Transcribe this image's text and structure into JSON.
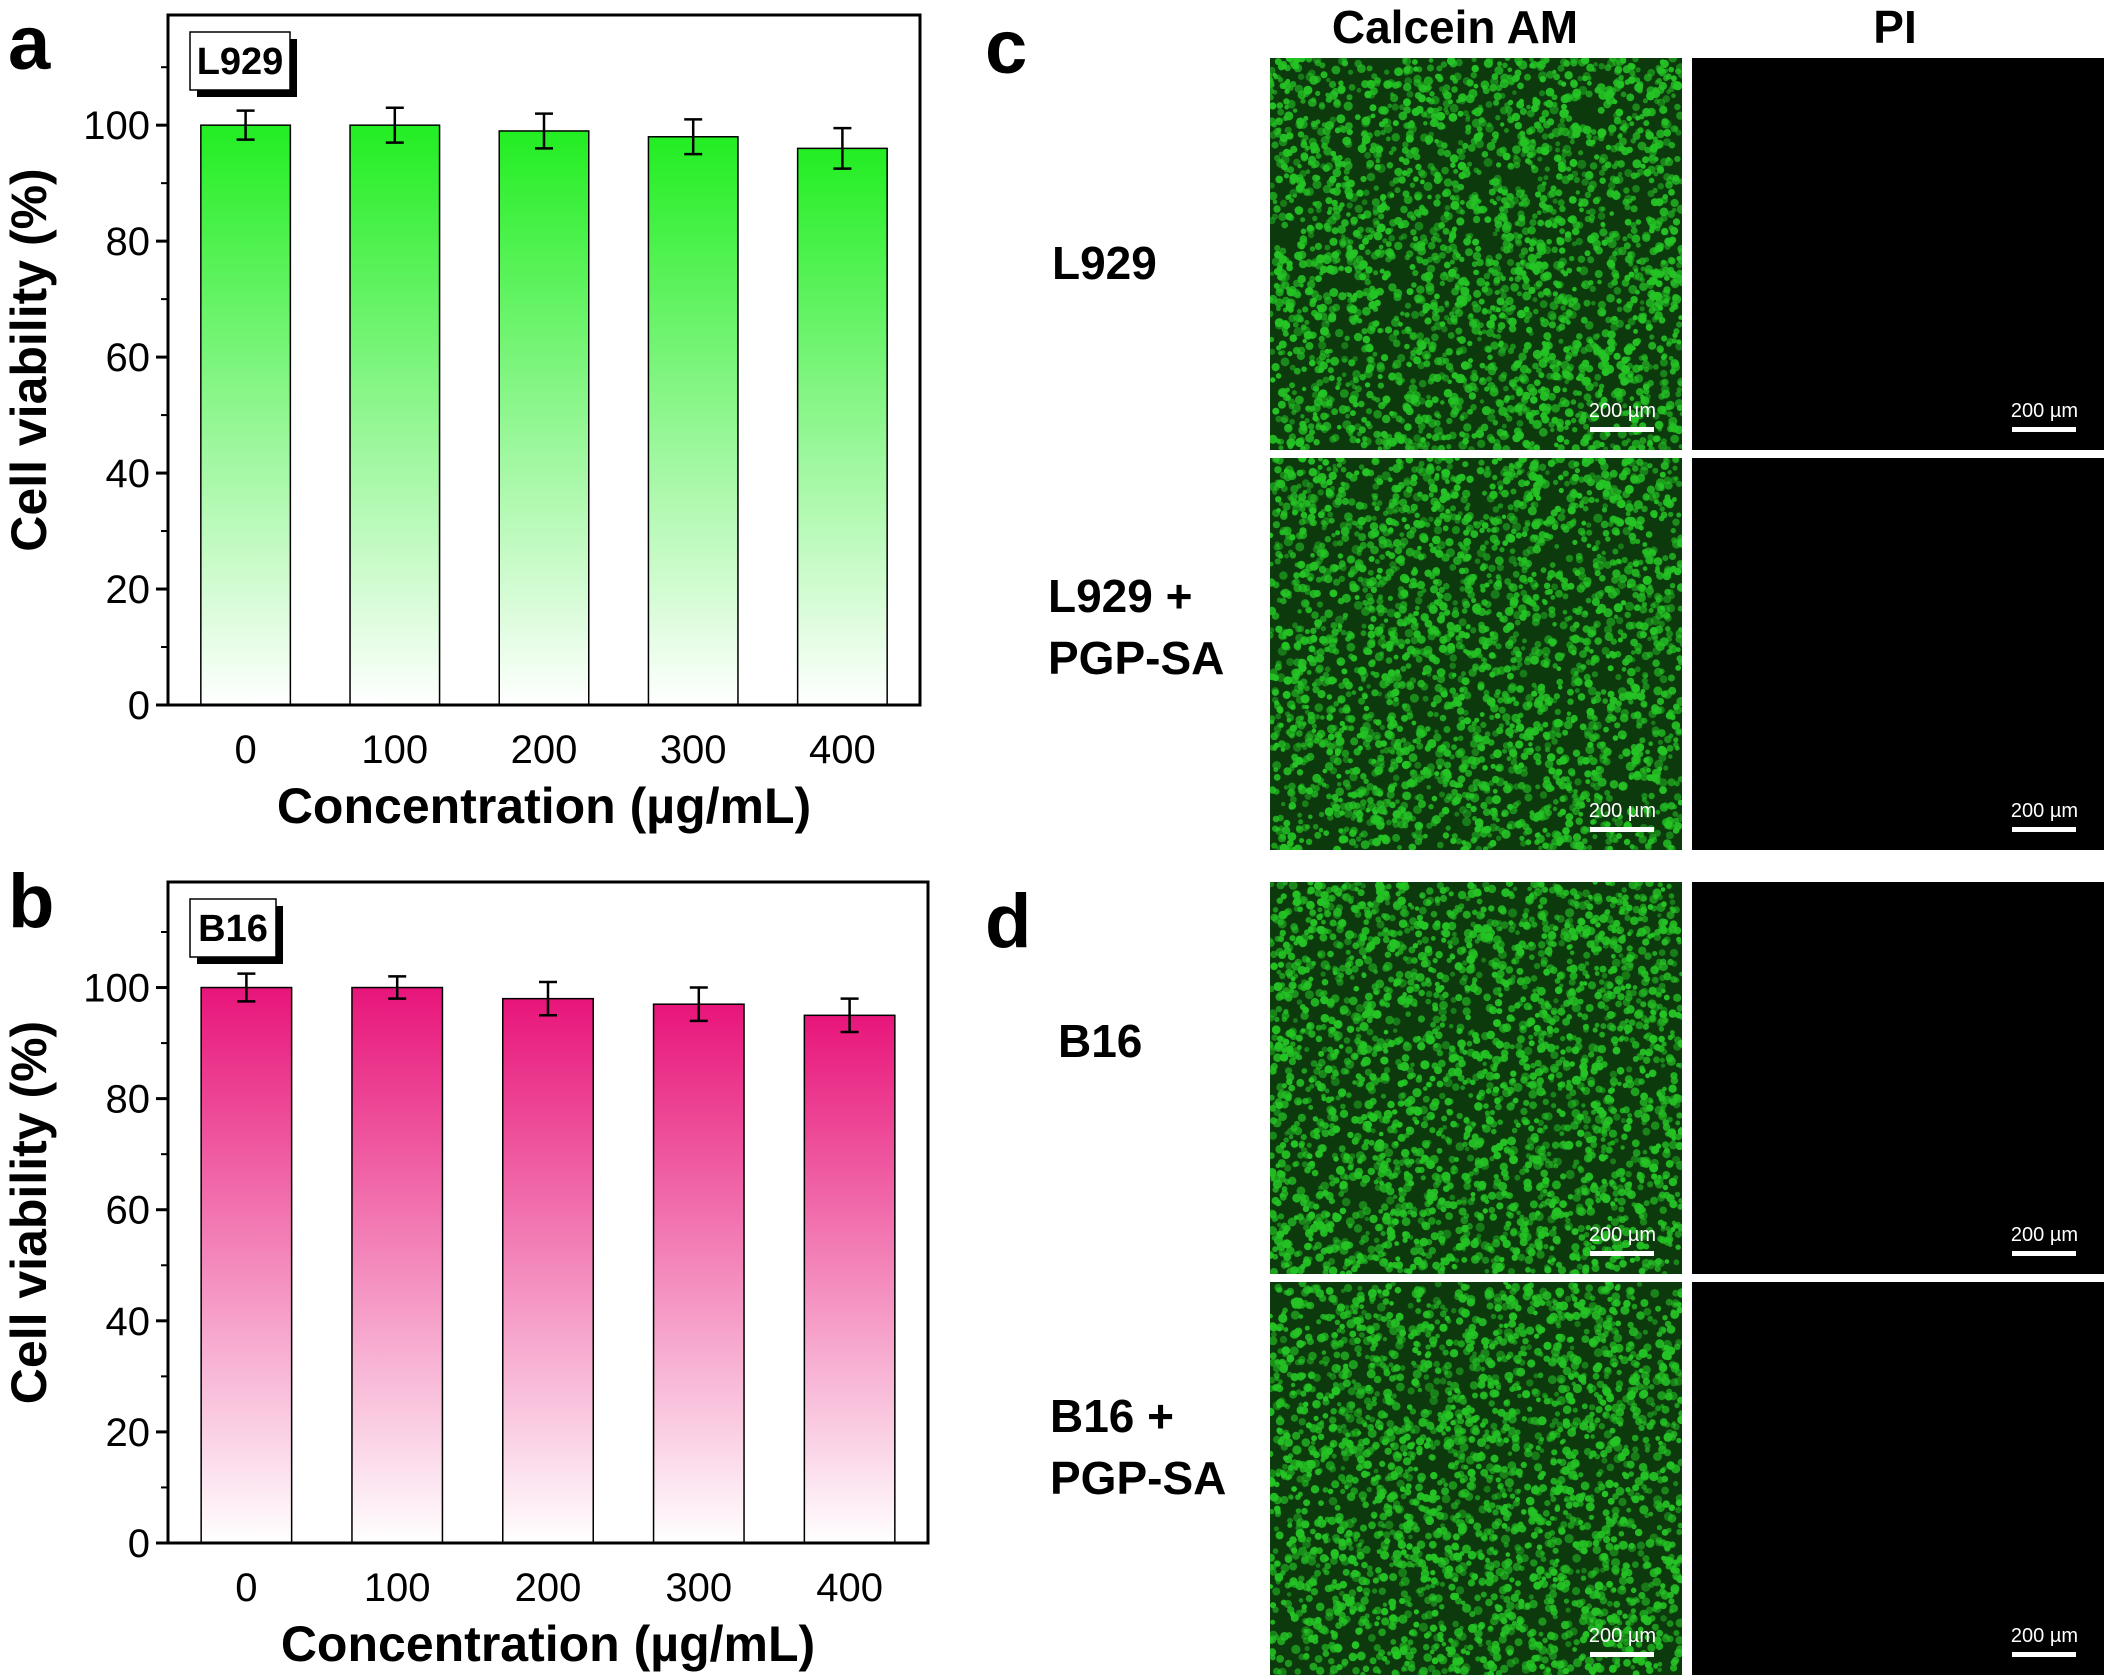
{
  "panels": {
    "a": "a",
    "b": "b",
    "c": "c",
    "d": "d"
  },
  "chart_data": [
    {
      "type": "bar",
      "panel": "a",
      "tag": "L929",
      "categories": [
        "0",
        "100",
        "200",
        "300",
        "400"
      ],
      "values": [
        100,
        100,
        99,
        98,
        96
      ],
      "errors": [
        2.5,
        3,
        3,
        3,
        3.5
      ],
      "xlabel": "Concentration (µg/mL)",
      "ylabel": "Cell viability (%)",
      "ylim": [
        0,
        119
      ],
      "yticks": [
        0,
        20,
        40,
        60,
        80,
        100
      ],
      "grid": false,
      "bar_color": "#22ee22"
    },
    {
      "type": "bar",
      "panel": "b",
      "tag": "B16",
      "categories": [
        "0",
        "100",
        "200",
        "300",
        "400"
      ],
      "values": [
        100,
        100,
        98,
        97,
        95
      ],
      "errors": [
        2.5,
        2,
        3,
        3,
        3
      ],
      "xlabel": "Concentration (µg/mL)",
      "ylabel": "Cell viability (%)",
      "ylim": [
        0,
        119
      ],
      "yticks": [
        0,
        20,
        40,
        60,
        80,
        100
      ],
      "grid": false,
      "bar_color": "#e8157a"
    }
  ],
  "images": {
    "columns": [
      "Calcein AM",
      "PI"
    ],
    "scale_bar": "200 µm",
    "green_color": "#25c425",
    "rows": [
      {
        "label_lines": [
          "L929"
        ]
      },
      {
        "label_lines": [
          "L929 +",
          "PGP-SA"
        ]
      },
      {
        "label_lines": [
          "B16"
        ]
      },
      {
        "label_lines": [
          "B16 +",
          "PGP-SA"
        ]
      }
    ]
  }
}
